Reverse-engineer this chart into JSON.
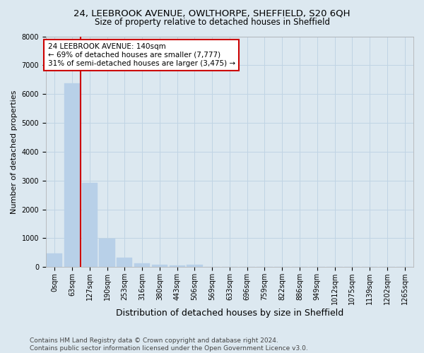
{
  "title1": "24, LEEBROOK AVENUE, OWLTHORPE, SHEFFIELD, S20 6QH",
  "title2": "Size of property relative to detached houses in Sheffield",
  "xlabel": "Distribution of detached houses by size in Sheffield",
  "ylabel": "Number of detached properties",
  "categories": [
    "0sqm",
    "63sqm",
    "127sqm",
    "190sqm",
    "253sqm",
    "316sqm",
    "380sqm",
    "443sqm",
    "506sqm",
    "569sqm",
    "633sqm",
    "696sqm",
    "759sqm",
    "822sqm",
    "886sqm",
    "949sqm",
    "1012sqm",
    "1075sqm",
    "1139sqm",
    "1202sqm",
    "1265sqm"
  ],
  "values": [
    480,
    6380,
    2920,
    975,
    320,
    130,
    75,
    55,
    80,
    0,
    0,
    0,
    0,
    0,
    0,
    0,
    0,
    0,
    0,
    0,
    0
  ],
  "bar_color": "#b8d0e8",
  "bar_edgecolor": "#b8d0e8",
  "property_line_color": "#cc0000",
  "property_line_xindex": 1.5,
  "annotation_text": "24 LEEBROOK AVENUE: 140sqm\n← 69% of detached houses are smaller (7,777)\n31% of semi-detached houses are larger (3,475) →",
  "annotation_box_facecolor": "#ffffff",
  "annotation_box_edgecolor": "#cc0000",
  "ylim": [
    0,
    8000
  ],
  "yticks": [
    0,
    1000,
    2000,
    3000,
    4000,
    5000,
    6000,
    7000,
    8000
  ],
  "grid_color": "#c0d4e4",
  "background_color": "#dce8f0",
  "plot_bg_color": "#dce8f0",
  "footer": "Contains HM Land Registry data © Crown copyright and database right 2024.\nContains public sector information licensed under the Open Government Licence v3.0.",
  "title1_fontsize": 9.5,
  "title2_fontsize": 8.5,
  "xlabel_fontsize": 9,
  "ylabel_fontsize": 8,
  "tick_fontsize": 7,
  "annotation_fontsize": 7.5,
  "footer_fontsize": 6.5
}
